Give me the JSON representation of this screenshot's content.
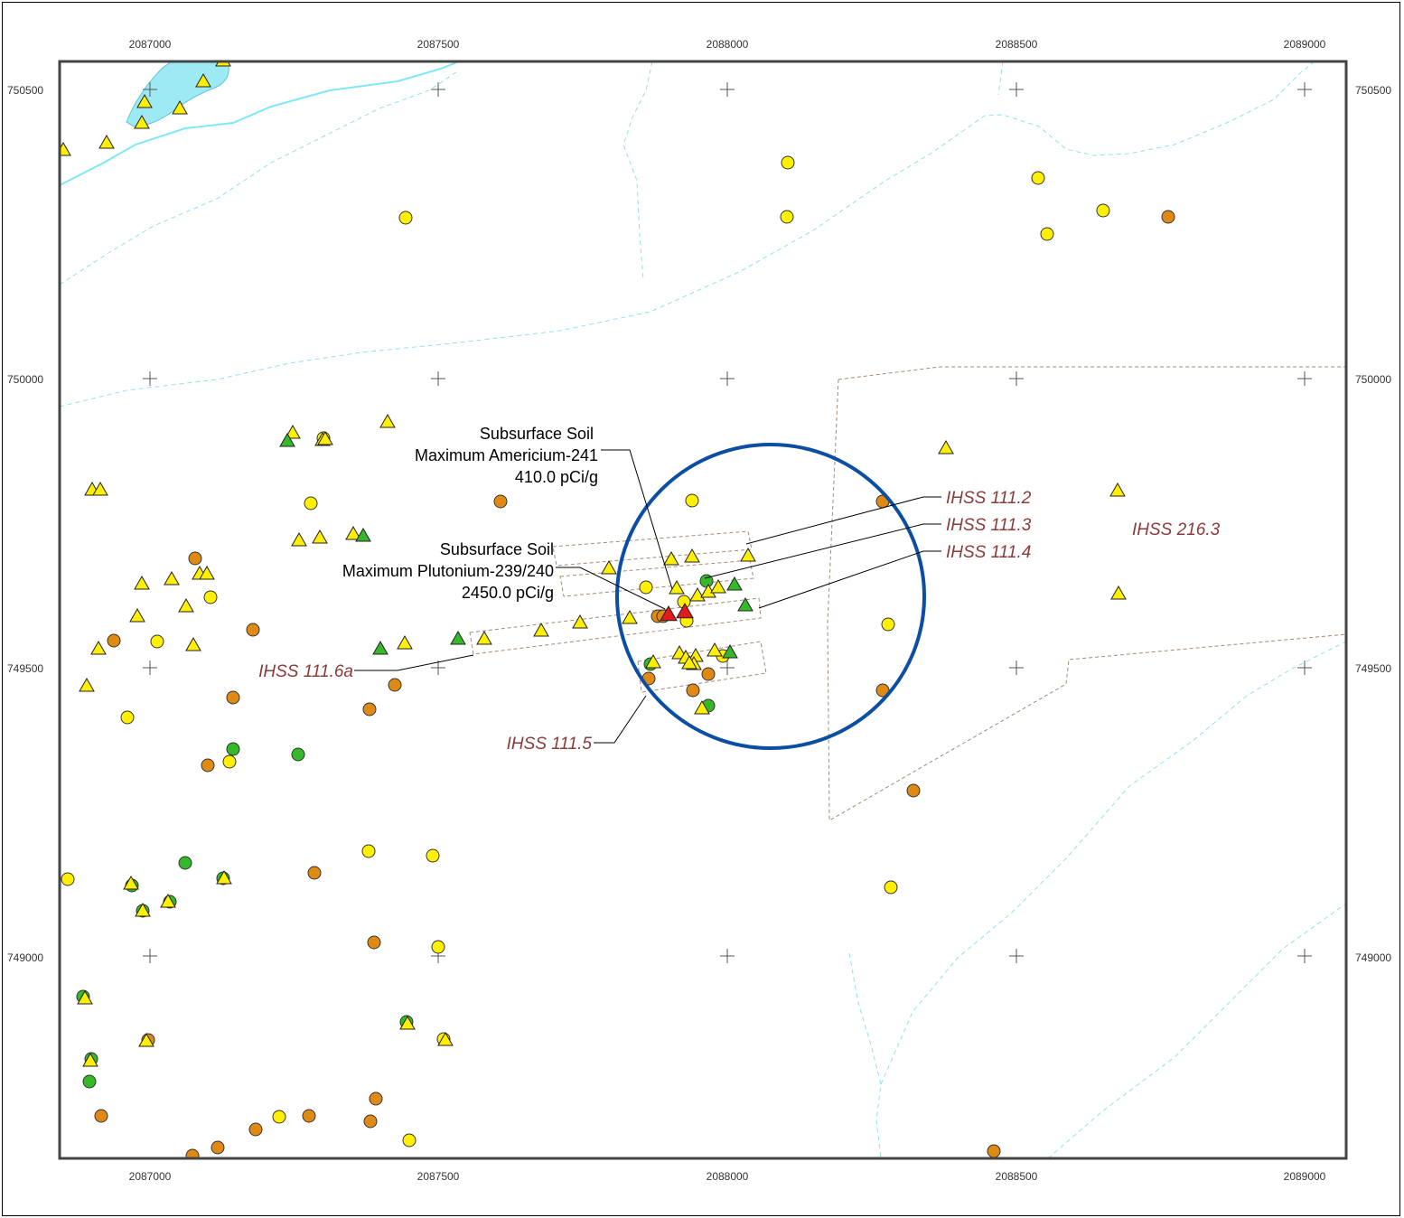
{
  "map": {
    "x_ticks": [
      "2087000",
      "2087500",
      "2088000",
      "2088500",
      "2089000"
    ],
    "y_ticks": [
      "750500",
      "750000",
      "749500",
      "749000"
    ],
    "colors": {
      "water": "#9eeaf4",
      "stream": "#7fe8f4",
      "drainage": "#8fe3ea",
      "ihss_boundary": "#a08c78",
      "circle": "#0b4ea2",
      "yellow": "#ffef00",
      "orange": "#e08a16",
      "green": "#35b92a",
      "red": "#e01b1b",
      "label": "#8b3a3a"
    },
    "callouts": {
      "americium": [
        "Subsurface Soil",
        "Maximum Americium-241",
        "410.0 pCi/g"
      ],
      "plutonium": [
        "Subsurface Soil",
        "Maximum Plutonium-239/240",
        "2450.0 pCi/g"
      ]
    },
    "ihss_labels": [
      "IHSS 111.2",
      "IHSS 111.3",
      "IHSS 111.4",
      "IHSS 216.3",
      "IHSS 111.6a",
      "IHSS 111.5"
    ]
  }
}
